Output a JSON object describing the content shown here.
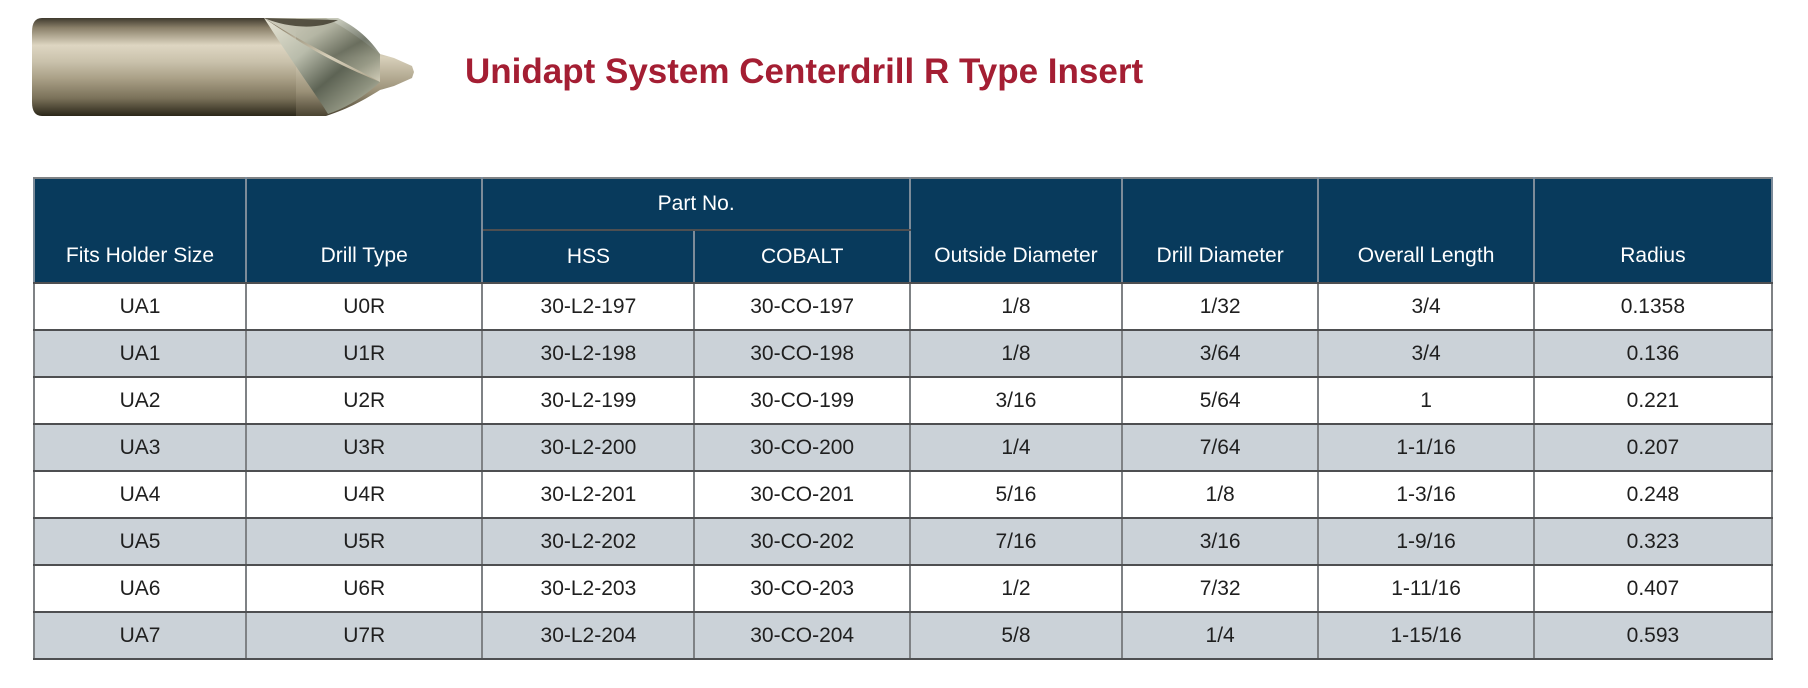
{
  "page": {
    "title": "Unidapt System Centerdrill R Type Insert"
  },
  "colors": {
    "title_red": "#A41E33",
    "header_navy": "#083A5C",
    "row_alt": "#CBD2D8",
    "row_white": "#FFFFFF",
    "border_dark": "#4E4F51",
    "border_mid": "#7F8285",
    "header_line": "#7C8B99",
    "cell_text": "#1F1F1F"
  },
  "product_image": {
    "alt": "Centerdrill R type insert photo"
  },
  "chart_data": {
    "type": "table",
    "title": "Unidapt System Centerdrill R Type Insert",
    "group_header": "Part No.",
    "columns": [
      "Fits Holder Size",
      "Drill Type",
      "HSS",
      "COBALT",
      "Outside Diameter",
      "Drill Diameter",
      "Overall Length",
      "Radius"
    ],
    "rows": [
      [
        "UA1",
        "U0R",
        "30-L2-197",
        "30-CO-197",
        "1/8",
        "1/32",
        "3/4",
        "0.1358"
      ],
      [
        "UA1",
        "U1R",
        "30-L2-198",
        "30-CO-198",
        "1/8",
        "3/64",
        "3/4",
        "0.136"
      ],
      [
        "UA2",
        "U2R",
        "30-L2-199",
        "30-CO-199",
        "3/16",
        "5/64",
        "1",
        "0.221"
      ],
      [
        "UA3",
        "U3R",
        "30-L2-200",
        "30-CO-200",
        "1/4",
        "7/64",
        "1-1/16",
        "0.207"
      ],
      [
        "UA4",
        "U4R",
        "30-L2-201",
        "30-CO-201",
        "5/16",
        "1/8",
        "1-3/16",
        "0.248"
      ],
      [
        "UA5",
        "U5R",
        "30-L2-202",
        "30-CO-202",
        "7/16",
        "3/16",
        "1-9/16",
        "0.323"
      ],
      [
        "UA6",
        "U6R",
        "30-L2-203",
        "30-CO-203",
        "1/2",
        "7/32",
        "1-11/16",
        "0.407"
      ],
      [
        "UA7",
        "U7R",
        "30-L2-204",
        "30-CO-204",
        "5/8",
        "1/4",
        "1-15/16",
        "0.593"
      ]
    ]
  }
}
